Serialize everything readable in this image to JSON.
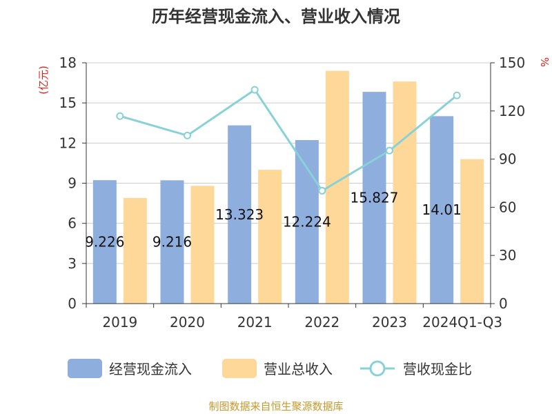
{
  "chart_data": {
    "type": "bar",
    "title": "历年经营现金流入、营业收入情况",
    "categories": [
      "2019",
      "2020",
      "2021",
      "2022",
      "2023",
      "2024Q1-Q3"
    ],
    "series": [
      {
        "name": "经营现金流入",
        "type": "bar",
        "axis": "left",
        "color": "#8eaedd",
        "values": [
          9.226,
          9.216,
          13.323,
          12.224,
          15.827,
          14.01
        ],
        "labels": [
          "9.226",
          "9.216",
          "13.323",
          "12.224",
          "15.827",
          "14.01"
        ]
      },
      {
        "name": "营业总收入",
        "type": "bar",
        "axis": "left",
        "color": "#fdd899",
        "values": [
          7.9,
          8.8,
          10.0,
          17.4,
          16.6,
          10.8
        ]
      },
      {
        "name": "营收现金比",
        "type": "line",
        "axis": "right",
        "color": "#88d1d6",
        "values": [
          116.8,
          104.7,
          133.2,
          70.3,
          95.3,
          129.7
        ]
      }
    ],
    "y_left": {
      "label": "(亿元)",
      "min": 0,
      "max": 18,
      "ticks": [
        "0",
        "3",
        "6",
        "9",
        "12",
        "15",
        "18"
      ]
    },
    "y_right": {
      "label": "%",
      "min": 0,
      "max": 150,
      "ticks": [
        "0",
        "30",
        "60",
        "90",
        "120",
        "150"
      ]
    },
    "grid": true,
    "legend_position": "bottom"
  },
  "source": "制图数据来自恒生聚源数据库"
}
